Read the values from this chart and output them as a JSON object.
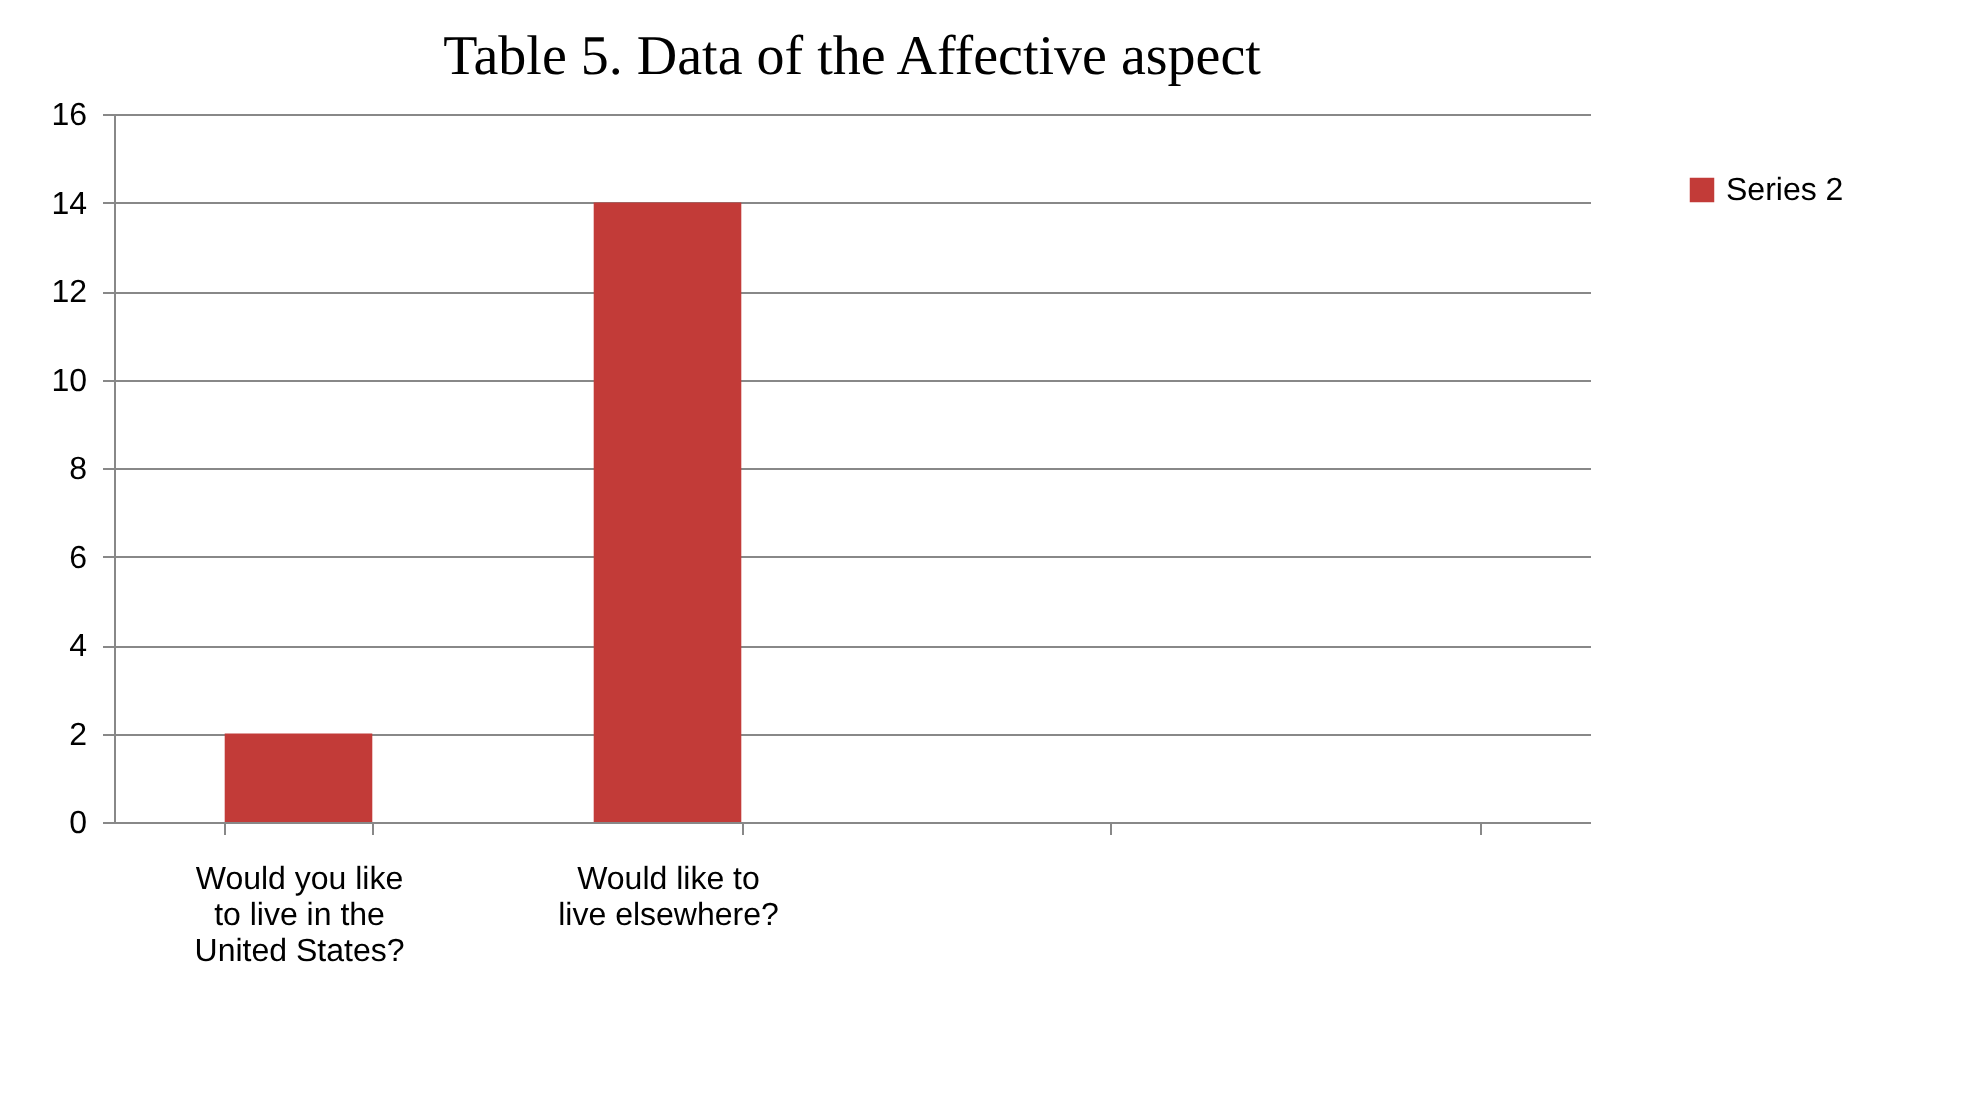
{
  "chart_data": {
    "type": "bar",
    "title": "Table 5. Data of the Affective aspect",
    "categories": [
      "Would you like to live in the United States?",
      "Would like to live elsewhere?",
      null,
      null
    ],
    "series": [
      {
        "name": "Series 2",
        "color": "#c23b38",
        "values": [
          2,
          14,
          null,
          null
        ]
      }
    ],
    "ylim": [
      0,
      16
    ],
    "yticks": [
      0,
      2,
      4,
      6,
      8,
      10,
      12,
      14,
      16
    ],
    "grid": "y",
    "legend": "right"
  }
}
